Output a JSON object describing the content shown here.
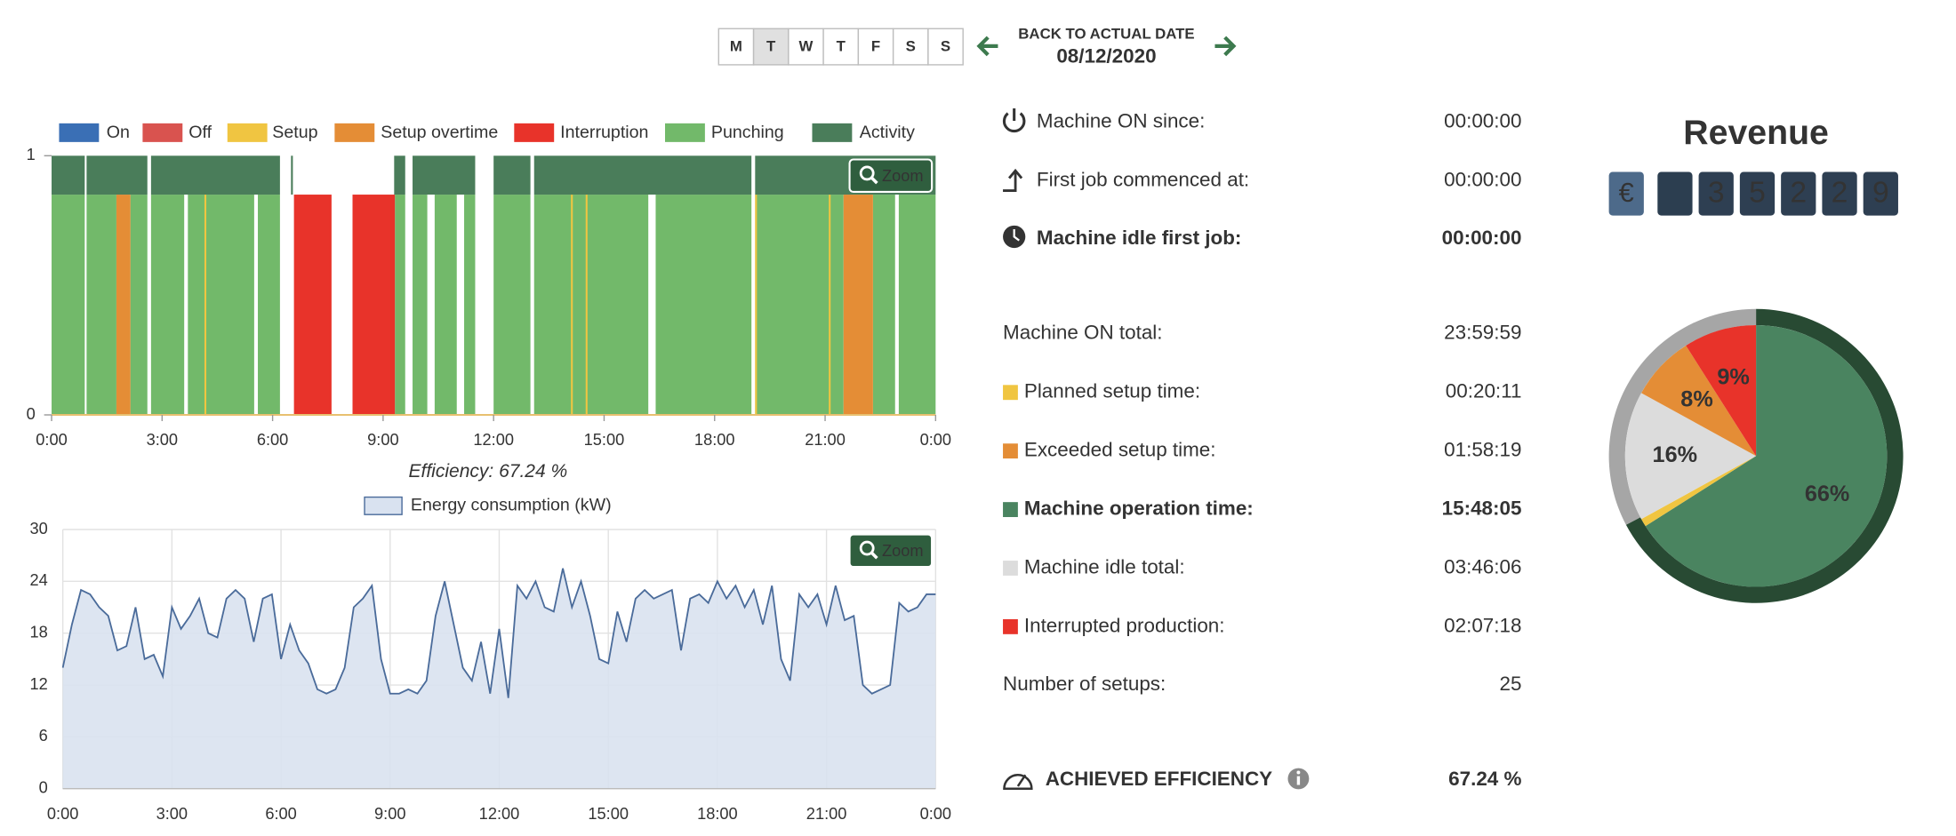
{
  "week_days": {
    "days": [
      "M",
      "T",
      "W",
      "T",
      "F",
      "S",
      "S"
    ],
    "selected": 1
  },
  "date_nav": {
    "back_label": "BACK TO ACTUAL DATE",
    "date": "08/12/2020"
  },
  "chart_data": [
    {
      "type": "timeline",
      "series": [
        {
          "name": "On",
          "color": "#3a6fb5",
          "segments": []
        },
        {
          "name": "Off",
          "color": "#d9534f",
          "segments": []
        },
        {
          "name": "Setup",
          "color": "#f0c541",
          "segments": [
            [
              4.15,
              4.2
            ],
            [
              14.1,
              14.15
            ],
            [
              14.5,
              14.55
            ],
            [
              19.1,
              19.15
            ],
            [
              21.1,
              21.15
            ]
          ]
        },
        {
          "name": "Setup overtime",
          "color": "#e48d36",
          "segments": [
            [
              1.76,
              2.14
            ],
            [
              21.5,
              22.3
            ]
          ]
        },
        {
          "name": "Interruption",
          "color": "#e8332a",
          "segments": [
            [
              6.58,
              7.6
            ],
            [
              8.17,
              9.32
            ]
          ]
        },
        {
          "name": "Punching",
          "color": "#72b96a",
          "segments": [
            [
              0,
              0.9
            ],
            [
              0.95,
              1.76
            ],
            [
              2.14,
              2.6
            ],
            [
              2.7,
              3.6
            ],
            [
              3.7,
              5.5
            ],
            [
              5.6,
              6.2
            ],
            [
              9.32,
              9.6
            ],
            [
              9.8,
              10.2
            ],
            [
              10.4,
              11.0
            ],
            [
              11.2,
              11.5
            ],
            [
              12.0,
              13.0
            ],
            [
              13.1,
              16.2
            ],
            [
              16.4,
              19.0
            ],
            [
              19.1,
              21.5
            ],
            [
              22.3,
              22.9
            ],
            [
              23.0,
              24
            ]
          ]
        },
        {
          "name": "Activity",
          "color": "#4a7d5a",
          "segments": [
            [
              0,
              0.9
            ],
            [
              0.95,
              2.6
            ],
            [
              2.7,
              6.2
            ],
            [
              6.5,
              6.55
            ],
            [
              9.3,
              9.6
            ],
            [
              9.8,
              11.5
            ],
            [
              12.0,
              13.0
            ],
            [
              13.1,
              19.0
            ],
            [
              19.1,
              24
            ]
          ]
        }
      ],
      "xlim": [
        0,
        24
      ],
      "xticks": [
        {
          "value": 0,
          "label": "0:00"
        },
        {
          "value": 3,
          "label": "3:00"
        },
        {
          "value": 6,
          "label": "6:00"
        },
        {
          "value": 9,
          "label": "9:00"
        },
        {
          "value": 12,
          "label": "12:00"
        },
        {
          "value": 15,
          "label": "15:00"
        },
        {
          "value": 18,
          "label": "18:00"
        },
        {
          "value": 21,
          "label": "21:00"
        },
        {
          "value": 24,
          "label": "0:00"
        }
      ],
      "ylim": [
        0,
        1
      ],
      "yticks": [
        0,
        1
      ],
      "zoom_label": "Zoom",
      "caption": "Efficiency: 67.24 %"
    },
    {
      "type": "area",
      "series": [
        {
          "name": "Energy consumption (kW)",
          "color": "#4a6b9a",
          "fill": "#d9e2f0",
          "values": [
            14,
            19,
            23,
            22.5,
            21,
            20,
            16,
            16.5,
            21,
            15,
            15.5,
            13,
            21,
            18.5,
            20,
            22,
            18,
            17.5,
            22,
            23,
            22,
            17,
            22,
            22.5,
            15,
            19,
            16,
            14.5,
            11.5,
            11,
            11.5,
            14,
            21,
            22,
            23.5,
            15,
            11,
            11,
            11.5,
            11,
            12.5,
            20,
            24,
            19,
            14,
            12.5,
            17,
            11,
            18.5,
            10.5,
            23.5,
            22,
            24,
            21,
            20.5,
            25.5,
            21,
            24,
            20,
            15,
            14.5,
            20.5,
            17,
            22,
            23,
            22,
            22.5,
            23,
            16,
            22,
            22.5,
            21.5,
            24,
            22,
            23.5,
            21,
            23,
            19,
            23.5,
            15,
            12.5,
            22.5,
            21,
            22.5,
            19,
            23.5,
            19.5,
            20,
            12,
            11,
            11.5,
            12,
            21.5,
            20.5,
            21,
            22.5,
            22.5
          ]
        }
      ],
      "x": [
        0,
        0.25,
        0.5,
        0.75,
        1,
        1.25,
        1.5,
        1.75,
        2,
        2.25,
        2.5,
        2.75,
        3,
        3.25,
        3.5,
        3.75,
        4,
        4.25,
        4.5,
        4.75,
        5,
        5.25,
        5.5,
        5.75,
        6,
        6.25,
        6.5,
        6.75,
        7,
        7.25,
        7.5,
        7.75,
        8,
        8.25,
        8.5,
        8.75,
        9,
        9.25,
        9.5,
        9.75,
        10,
        10.25,
        10.5,
        10.75,
        11,
        11.25,
        11.5,
        11.75,
        12,
        12.25,
        12.5,
        12.75,
        13,
        13.25,
        13.5,
        13.75,
        14,
        14.25,
        14.5,
        14.75,
        15,
        15.25,
        15.5,
        15.75,
        16,
        16.25,
        16.5,
        16.75,
        17,
        17.25,
        17.5,
        17.75,
        18,
        18.25,
        18.5,
        18.75,
        19,
        19.25,
        19.5,
        19.75,
        20,
        20.25,
        20.5,
        20.75,
        21,
        21.25,
        21.5,
        21.75,
        22,
        22.25,
        22.5,
        22.75,
        23,
        23.25,
        23.5,
        23.75,
        24
      ],
      "xlim": [
        0,
        24
      ],
      "xticks": [
        {
          "value": 0,
          "label": "0:00"
        },
        {
          "value": 3,
          "label": "3:00"
        },
        {
          "value": 6,
          "label": "6:00"
        },
        {
          "value": 9,
          "label": "9:00"
        },
        {
          "value": 12,
          "label": "12:00"
        },
        {
          "value": 15,
          "label": "15:00"
        },
        {
          "value": 18,
          "label": "18:00"
        },
        {
          "value": 21,
          "label": "21:00"
        },
        {
          "value": 24,
          "label": "0:00"
        }
      ],
      "ylim": [
        0,
        30
      ],
      "yticks": [
        0,
        6,
        12,
        18,
        24,
        30
      ],
      "grid": true,
      "zoom_label": "Zoom"
    },
    {
      "type": "pie",
      "values": [
        66,
        1,
        16,
        8,
        9
      ],
      "value_labels": [
        "66%",
        null,
        "16%",
        "8%",
        "9%"
      ],
      "colors": [
        "#4a8460",
        "#f0c541",
        "#dcdcdc",
        "#e48d36",
        "#e8332a"
      ],
      "label_colors": [
        "#ffffff",
        null,
        "#222222",
        "#222222",
        "#ffffff"
      ],
      "ring": {
        "values": [
          67.24,
          32.76
        ],
        "colors": [
          "#284a33",
          "#a6a6a6"
        ]
      }
    }
  ],
  "stats": {
    "rows": [
      {
        "label": "Machine ON since:",
        "value": "00:00:00",
        "bold": false
      },
      {
        "label": "First job commenced at:",
        "value": "00:00:00",
        "bold": false
      },
      {
        "label": "Machine idle first job:",
        "value": "00:00:00",
        "bold": true
      },
      {
        "label": "Machine ON total:",
        "value": "23:59:59",
        "bold": false
      },
      {
        "label": "Planned setup time:",
        "value": "00:20:11",
        "bold": false,
        "color": "#f0c541"
      },
      {
        "label": "Exceeded setup time:",
        "value": "01:58:19",
        "bold": false,
        "color": "#e48d36"
      },
      {
        "label": "Machine operation time:",
        "value": "15:48:05",
        "bold": true,
        "color": "#4a8460"
      },
      {
        "label": "Machine idle total:",
        "value": "03:46:06",
        "bold": false,
        "color": "#dcdcdc"
      },
      {
        "label": "Interrupted production:",
        "value": "02:07:18",
        "bold": false,
        "color": "#e8332a"
      },
      {
        "label": "Number of setups:",
        "value": 25,
        "bold": false
      }
    ],
    "efficiency_label": "ACHIEVED EFFICIENCY",
    "efficiency_value": "67.24 %"
  },
  "revenue": {
    "title": "Revenue",
    "currency": "€",
    "digits": [
      "3",
      "5",
      "2",
      "2",
      "9"
    ]
  }
}
